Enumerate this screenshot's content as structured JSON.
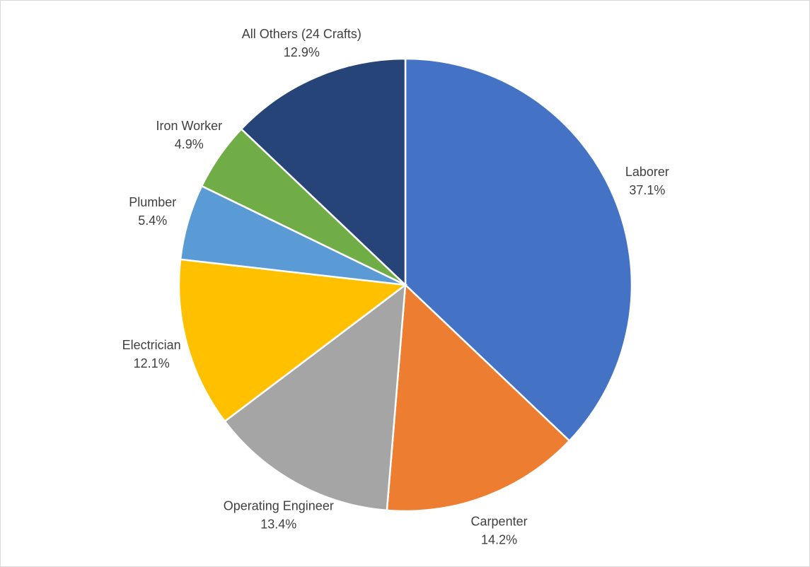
{
  "chart_data": {
    "type": "pie",
    "categories": [
      "Laborer",
      "Carpenter",
      "Operating Engineer",
      "Electrician",
      "Plumber",
      "Iron Worker",
      "All Others (24 Crafts)"
    ],
    "values": [
      37.1,
      14.2,
      13.4,
      12.1,
      5.4,
      4.9,
      12.9
    ],
    "value_labels": [
      "37.1%",
      "14.2%",
      "13.4%",
      "12.1%",
      "5.4%",
      "4.9%",
      "12.9%"
    ],
    "colors": [
      "#4472c4",
      "#ed7d31",
      "#a5a5a5",
      "#ffc000",
      "#5b9bd5",
      "#70ad47",
      "#264478"
    ]
  }
}
